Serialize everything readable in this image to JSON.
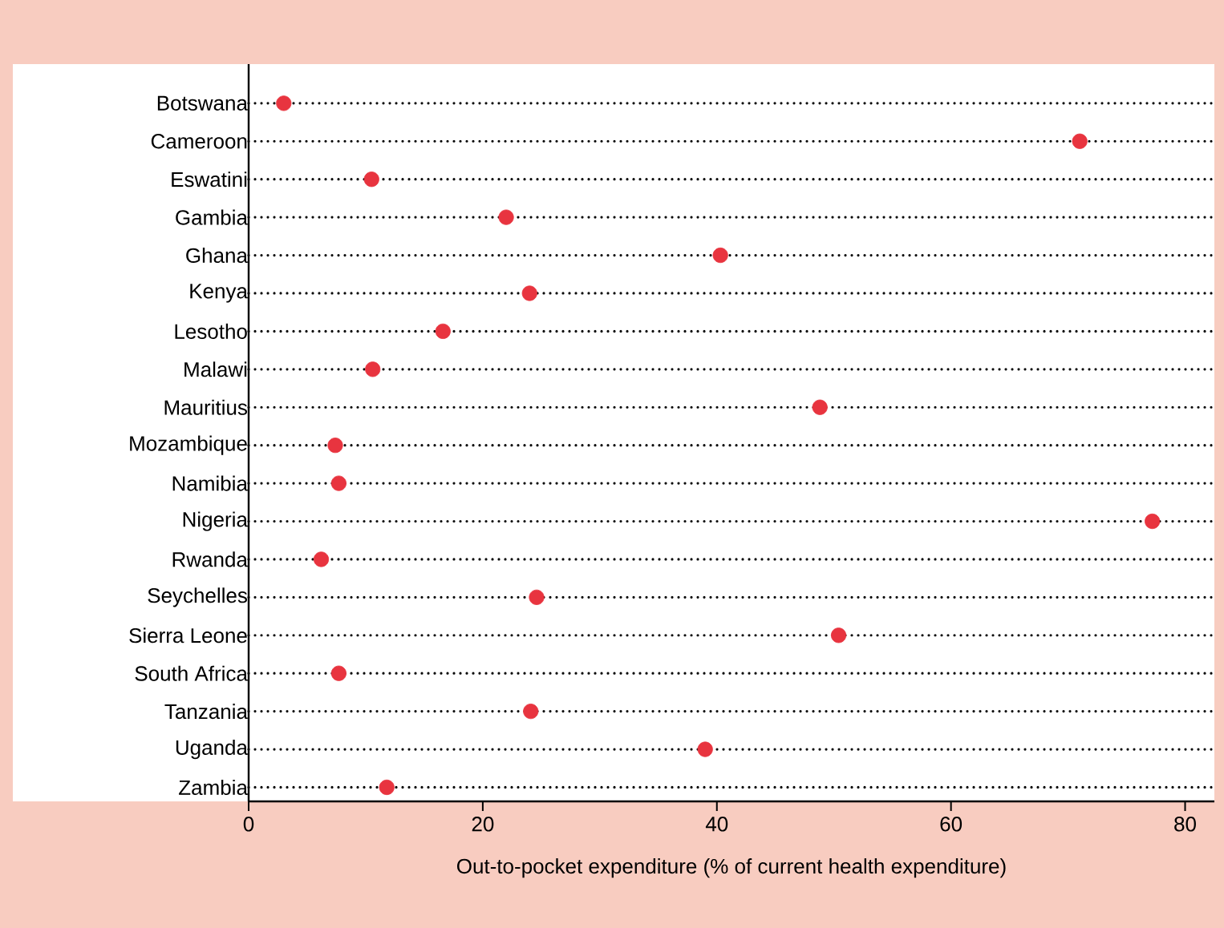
{
  "chart_data": {
    "type": "scatter",
    "orientation": "horizontal",
    "xlabel": "Out-to-pocket expenditure (% of current health expenditure)",
    "categories": [
      "Botswana",
      "Cameroon",
      "Eswatini",
      "Gambia",
      "Ghana",
      "Kenya",
      "Lesotho",
      "Malawi",
      "Mauritius",
      "Mozambique",
      "Namibia",
      "Nigeria",
      "Rwanda",
      "Seychelles",
      "Sierra Leone",
      "South Africa",
      "Tanzania",
      "Uganda",
      "Zambia"
    ],
    "values": [
      3.0,
      71.0,
      10.5,
      22.0,
      40.3,
      24.0,
      16.6,
      10.6,
      48.8,
      7.4,
      7.7,
      77.2,
      6.2,
      24.6,
      50.4,
      7.7,
      24.1,
      39.0,
      11.8
    ],
    "color": "#e8343f",
    "marker": "circle",
    "grid": "y",
    "xlim": [
      0,
      82.5
    ],
    "xticks": [
      0,
      20,
      40,
      60,
      80
    ]
  }
}
